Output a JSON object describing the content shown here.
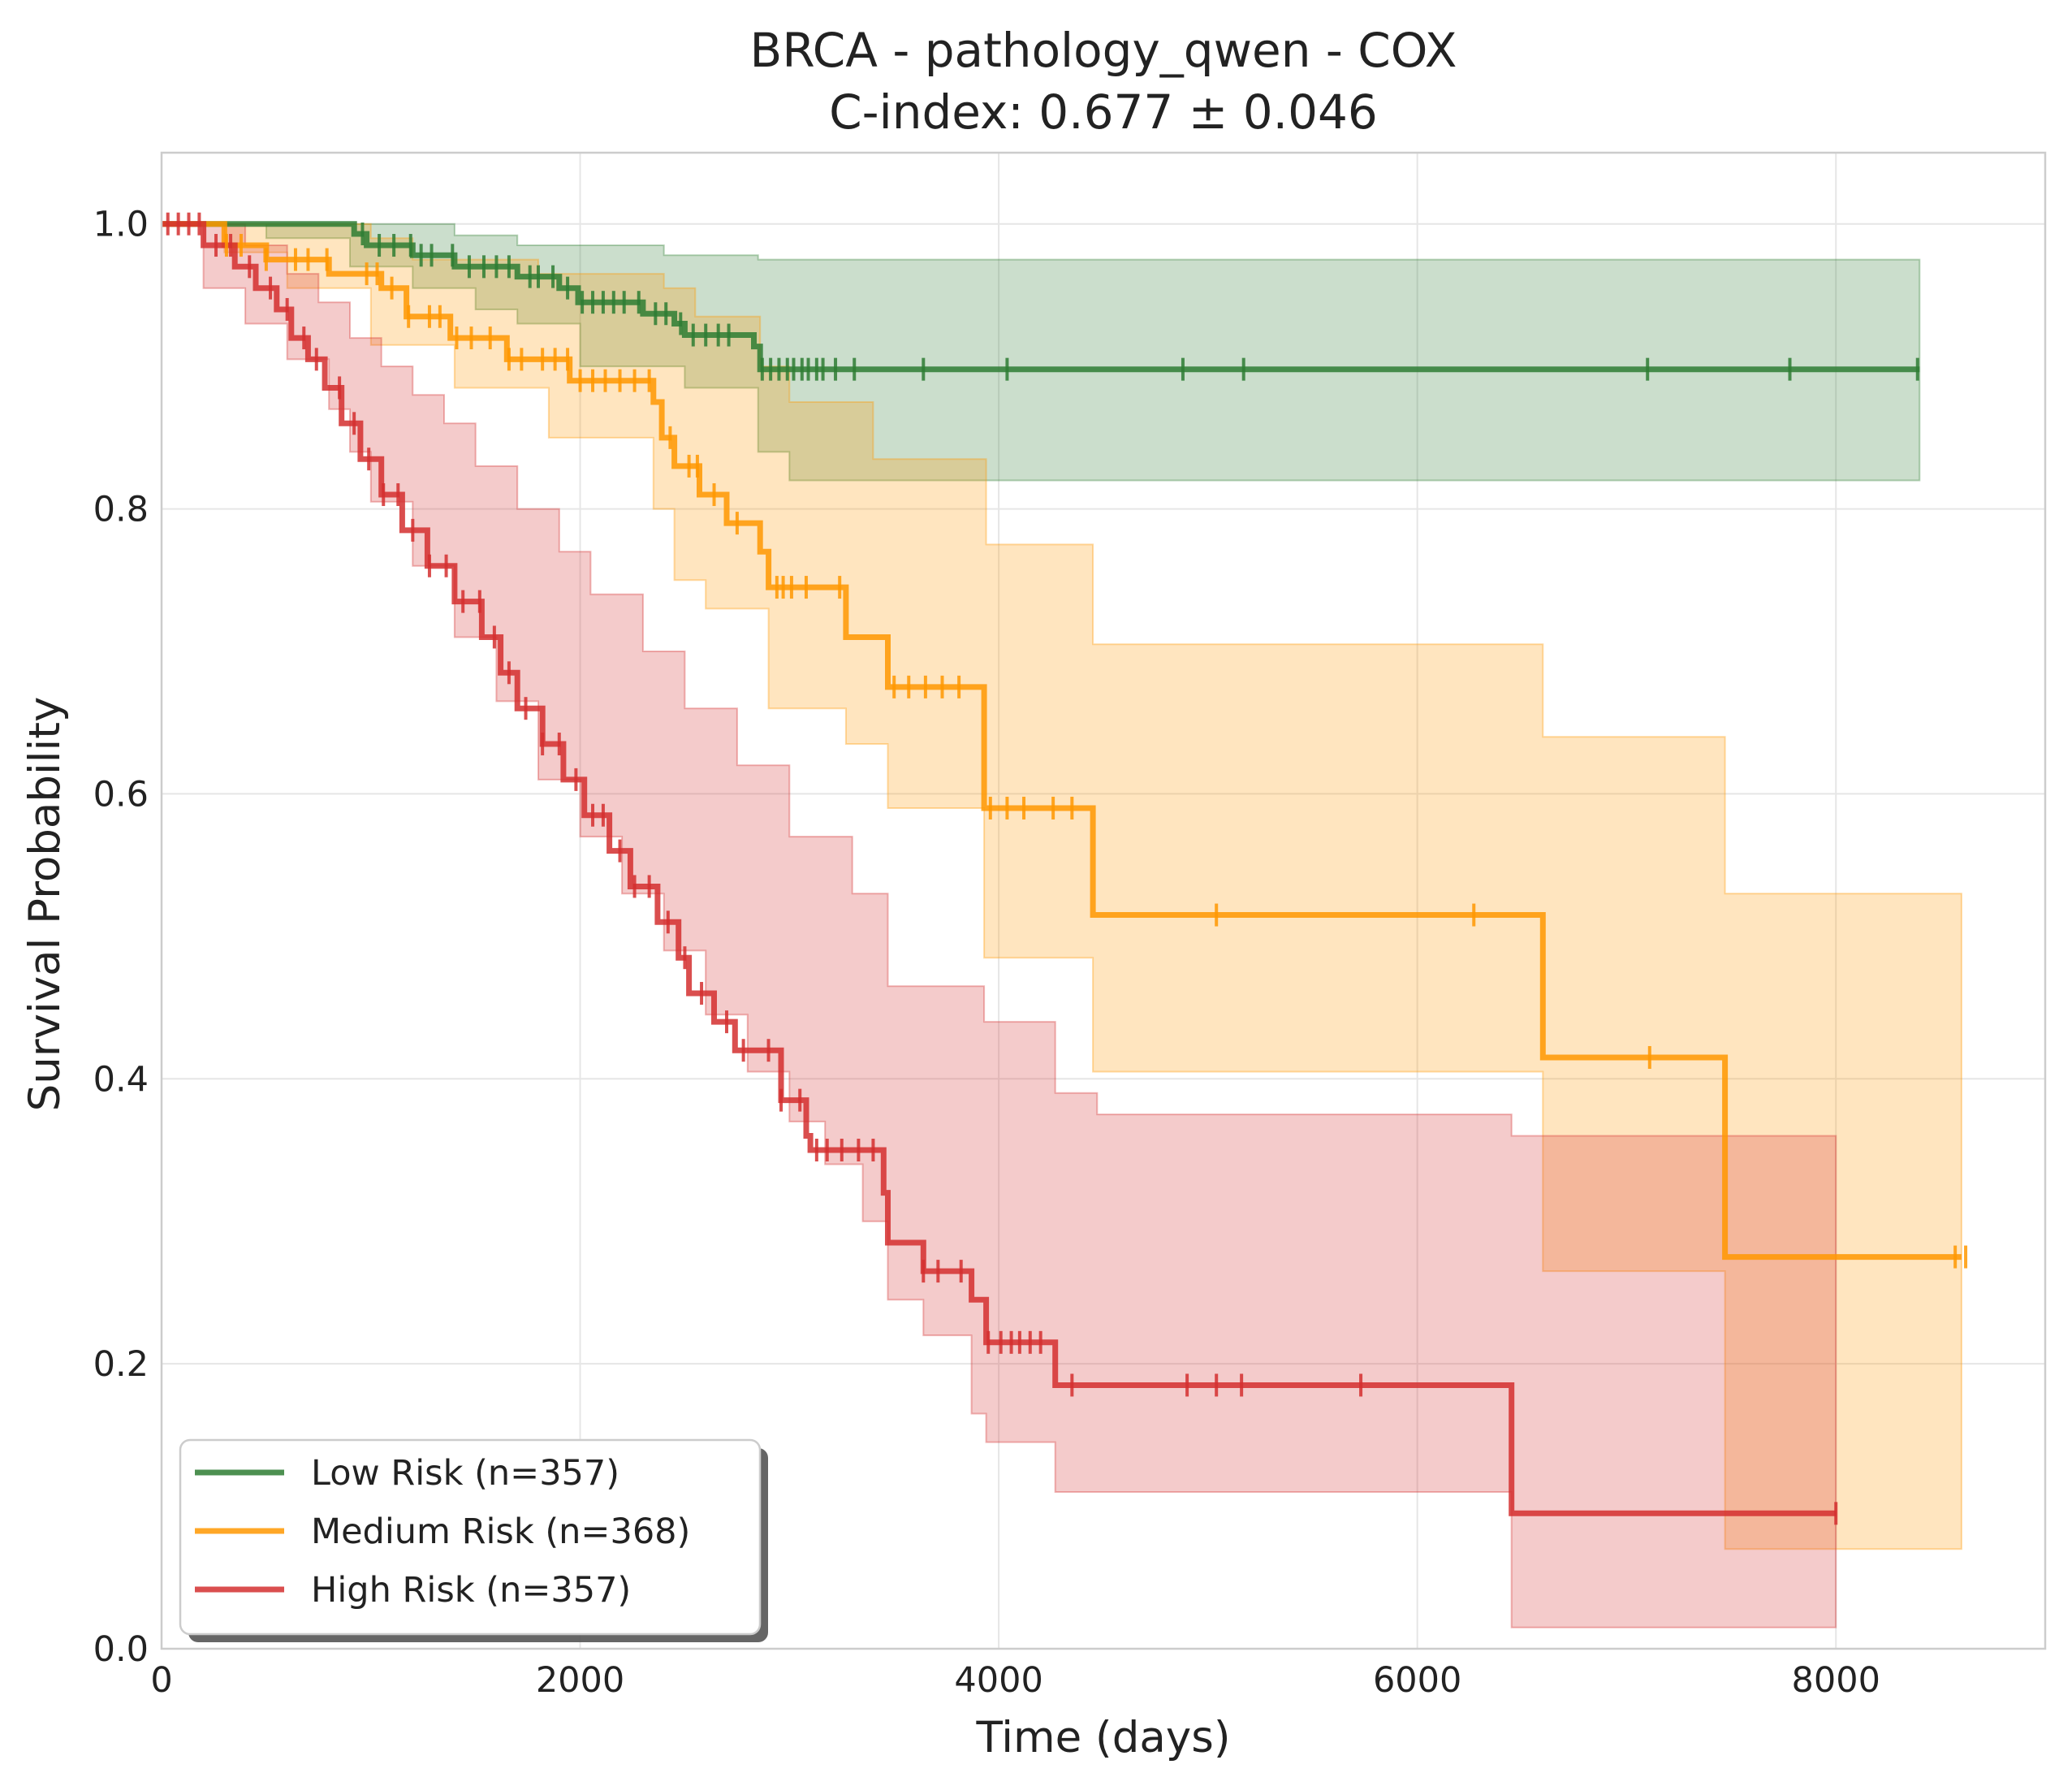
{
  "chart_data": {
    "type": "line",
    "subtype": "kaplan-meier",
    "title": "BRCA - pathology_qwen - COX",
    "subtitle": "C-index: 0.677 ± 0.046",
    "xlabel": "Time (days)",
    "ylabel": "Survival Probability",
    "xlim": [
      0,
      9000
    ],
    "ylim": [
      0,
      1.05
    ],
    "xticks": [
      0,
      2000,
      4000,
      6000,
      8000
    ],
    "xtick_labels": [
      "0",
      "2000",
      "4000",
      "6000",
      "8000"
    ],
    "yticks": [
      0,
      0.2,
      0.4,
      0.6,
      0.8,
      1.0
    ],
    "ytick_labels": [
      "0.0",
      "0.2",
      "0.4",
      "0.6",
      "0.8",
      "1.0"
    ],
    "grid": true,
    "legend_position": "lower-left",
    "series": [
      {
        "name": "Low Risk (n=357)",
        "color": "#2e7d32",
        "steps": [
          [
            0,
            1.0
          ],
          [
            920,
            0.993
          ],
          [
            980,
            0.985
          ],
          [
            1200,
            0.978
          ],
          [
            1400,
            0.97
          ],
          [
            1700,
            0.963
          ],
          [
            1900,
            0.955
          ],
          [
            1990,
            0.945
          ],
          [
            2300,
            0.937
          ],
          [
            2450,
            0.93
          ],
          [
            2500,
            0.922
          ],
          [
            2830,
            0.914
          ],
          [
            2860,
            0.898
          ],
          [
            8400,
            0.898
          ]
        ],
        "ci_upper": [
          [
            0,
            1.0
          ],
          [
            1100,
            1.0
          ],
          [
            1400,
            0.992
          ],
          [
            1700,
            0.985
          ],
          [
            2400,
            0.978
          ],
          [
            2850,
            0.975
          ],
          [
            8400,
            0.975
          ]
        ],
        "ci_lower": [
          [
            0,
            1.0
          ],
          [
            500,
            0.99
          ],
          [
            900,
            0.97
          ],
          [
            1200,
            0.955
          ],
          [
            1500,
            0.94
          ],
          [
            1700,
            0.93
          ],
          [
            2000,
            0.9
          ],
          [
            2500,
            0.885
          ],
          [
            2850,
            0.84
          ],
          [
            3000,
            0.82
          ],
          [
            8400,
            0.82
          ]
        ],
        "censor_times": [
          960,
          1040,
          1110,
          1190,
          1240,
          1290,
          1390,
          1470,
          1540,
          1600,
          1660,
          1760,
          1800,
          1870,
          1940,
          2010,
          2060,
          2110,
          2160,
          2210,
          2280,
          2360,
          2410,
          2480,
          2540,
          2600,
          2660,
          2710,
          2870,
          2910,
          2950,
          2990,
          3020,
          3060,
          3090,
          3130,
          3160,
          3220,
          3310,
          3640,
          4040,
          4880,
          5170,
          7100,
          7780,
          8390
        ]
      },
      {
        "name": "Medium Risk (n=368)",
        "color": "#ff9800",
        "steps": [
          [
            0,
            1.0
          ],
          [
            300,
            0.985
          ],
          [
            500,
            0.975
          ],
          [
            800,
            0.965
          ],
          [
            1050,
            0.955
          ],
          [
            1170,
            0.935
          ],
          [
            1380,
            0.92
          ],
          [
            1650,
            0.905
          ],
          [
            1950,
            0.89
          ],
          [
            2350,
            0.875
          ],
          [
            2390,
            0.85
          ],
          [
            2450,
            0.83
          ],
          [
            2570,
            0.81
          ],
          [
            2700,
            0.79
          ],
          [
            2860,
            0.77
          ],
          [
            2900,
            0.745
          ],
          [
            3270,
            0.71
          ],
          [
            3470,
            0.675
          ],
          [
            3930,
            0.59
          ],
          [
            4450,
            0.515
          ],
          [
            6600,
            0.415
          ],
          [
            7470,
            0.275
          ],
          [
            8600,
            0.275
          ]
        ],
        "ci_upper": [
          [
            0,
            1.0
          ],
          [
            700,
            1.0
          ],
          [
            1000,
            0.99
          ],
          [
            1200,
            0.975
          ],
          [
            1800,
            0.965
          ],
          [
            2400,
            0.955
          ],
          [
            2550,
            0.935
          ],
          [
            2860,
            0.9
          ],
          [
            3000,
            0.875
          ],
          [
            3400,
            0.835
          ],
          [
            3940,
            0.775
          ],
          [
            4450,
            0.705
          ],
          [
            6600,
            0.64
          ],
          [
            7470,
            0.53
          ],
          [
            8600,
            0.53
          ]
        ],
        "ci_lower": [
          [
            0,
            1.0
          ],
          [
            300,
            0.98
          ],
          [
            600,
            0.955
          ],
          [
            1000,
            0.915
          ],
          [
            1400,
            0.885
          ],
          [
            1850,
            0.85
          ],
          [
            2350,
            0.8
          ],
          [
            2450,
            0.75
          ],
          [
            2600,
            0.73
          ],
          [
            2900,
            0.66
          ],
          [
            3270,
            0.635
          ],
          [
            3470,
            0.59
          ],
          [
            3930,
            0.485
          ],
          [
            4450,
            0.405
          ],
          [
            6600,
            0.265
          ],
          [
            7470,
            0.07
          ],
          [
            8600,
            0.07
          ]
        ],
        "censor_times": [
          310,
          380,
          500,
          640,
          700,
          790,
          980,
          1030,
          1100,
          1180,
          1280,
          1330,
          1410,
          1480,
          1570,
          1660,
          1720,
          1820,
          1880,
          1940,
          2000,
          2060,
          2120,
          2190,
          2260,
          2330,
          2430,
          2520,
          2560,
          2640,
          2750,
          2940,
          2970,
          3010,
          3080,
          3240,
          3500,
          3570,
          3650,
          3730,
          3810,
          3960,
          4040,
          4120,
          4260,
          4350,
          5040,
          6270,
          7110,
          8570,
          8620
        ]
      },
      {
        "name": "High Risk (n=357)",
        "color": "#d32f2f",
        "steps": [
          [
            0,
            1.0
          ],
          [
            200,
            0.985
          ],
          [
            350,
            0.97
          ],
          [
            450,
            0.955
          ],
          [
            550,
            0.94
          ],
          [
            620,
            0.92
          ],
          [
            700,
            0.905
          ],
          [
            780,
            0.885
          ],
          [
            860,
            0.86
          ],
          [
            950,
            0.835
          ],
          [
            1050,
            0.81
          ],
          [
            1150,
            0.785
          ],
          [
            1270,
            0.76
          ],
          [
            1400,
            0.735
          ],
          [
            1530,
            0.71
          ],
          [
            1620,
            0.685
          ],
          [
            1700,
            0.66
          ],
          [
            1820,
            0.635
          ],
          [
            1920,
            0.61
          ],
          [
            2020,
            0.585
          ],
          [
            2140,
            0.56
          ],
          [
            2240,
            0.535
          ],
          [
            2370,
            0.51
          ],
          [
            2470,
            0.485
          ],
          [
            2520,
            0.46
          ],
          [
            2640,
            0.44
          ],
          [
            2740,
            0.42
          ],
          [
            2960,
            0.385
          ],
          [
            3080,
            0.36
          ],
          [
            3100,
            0.35
          ],
          [
            3450,
            0.32
          ],
          [
            3470,
            0.285
          ],
          [
            3640,
            0.265
          ],
          [
            3870,
            0.245
          ],
          [
            3940,
            0.215
          ],
          [
            4270,
            0.185
          ],
          [
            6450,
            0.095
          ],
          [
            8000,
            0.095
          ]
        ],
        "ci_upper": [
          [
            0,
            1.0
          ],
          [
            200,
            1.0
          ],
          [
            400,
            0.985
          ],
          [
            600,
            0.965
          ],
          [
            750,
            0.945
          ],
          [
            900,
            0.92
          ],
          [
            1050,
            0.9
          ],
          [
            1200,
            0.88
          ],
          [
            1350,
            0.86
          ],
          [
            1500,
            0.83
          ],
          [
            1700,
            0.8
          ],
          [
            1900,
            0.77
          ],
          [
            2050,
            0.74
          ],
          [
            2300,
            0.7
          ],
          [
            2500,
            0.66
          ],
          [
            2750,
            0.62
          ],
          [
            3000,
            0.57
          ],
          [
            3300,
            0.53
          ],
          [
            3470,
            0.465
          ],
          [
            3930,
            0.44
          ],
          [
            4270,
            0.39
          ],
          [
            4470,
            0.375
          ],
          [
            6450,
            0.36
          ],
          [
            8000,
            0.36
          ]
        ],
        "ci_lower": [
          [
            0,
            1.0
          ],
          [
            200,
            0.955
          ],
          [
            400,
            0.93
          ],
          [
            600,
            0.905
          ],
          [
            800,
            0.87
          ],
          [
            900,
            0.84
          ],
          [
            1000,
            0.805
          ],
          [
            1200,
            0.76
          ],
          [
            1400,
            0.71
          ],
          [
            1600,
            0.665
          ],
          [
            1800,
            0.61
          ],
          [
            2000,
            0.57
          ],
          [
            2200,
            0.53
          ],
          [
            2400,
            0.49
          ],
          [
            2600,
            0.445
          ],
          [
            2800,
            0.405
          ],
          [
            3000,
            0.37
          ],
          [
            3170,
            0.34
          ],
          [
            3350,
            0.3
          ],
          [
            3470,
            0.245
          ],
          [
            3640,
            0.22
          ],
          [
            3870,
            0.165
          ],
          [
            3940,
            0.145
          ],
          [
            4270,
            0.11
          ],
          [
            6450,
            0.015
          ],
          [
            8000,
            0.015
          ]
        ],
        "censor_times": [
          30,
          80,
          130,
          180,
          260,
          330,
          420,
          520,
          600,
          680,
          740,
          850,
          920,
          990,
          1060,
          1130,
          1200,
          1280,
          1360,
          1440,
          1520,
          1590,
          1660,
          1740,
          1820,
          1900,
          1980,
          2060,
          2110,
          2190,
          2260,
          2330,
          2420,
          2500,
          2580,
          2700,
          2780,
          2900,
          2960,
          3050,
          3130,
          3180,
          3250,
          3330,
          3400,
          3640,
          3710,
          3820,
          3950,
          4010,
          4060,
          4100,
          4150,
          4200,
          4350,
          4900,
          5040,
          5160,
          5730,
          8000
        ]
      }
    ]
  }
}
